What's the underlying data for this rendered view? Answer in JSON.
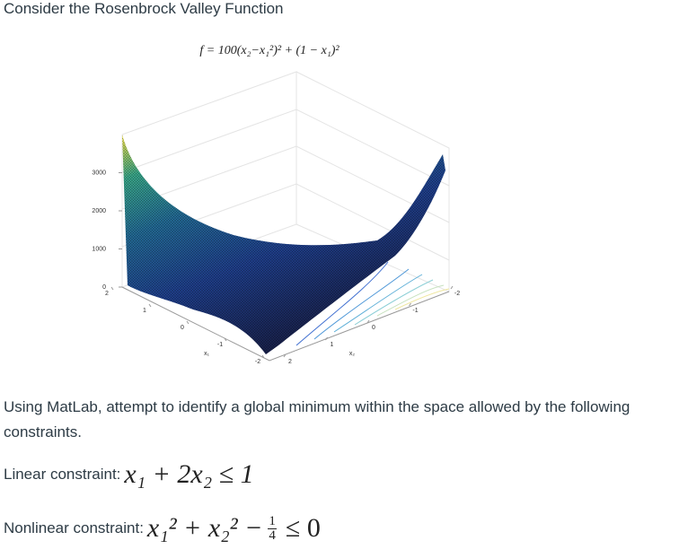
{
  "header": {
    "title": "Consider the Rosenbrock Valley Function"
  },
  "figure": {
    "formula": "f = 100(x₂−x₁²)² + (1 − x₁)²",
    "zticks": [
      0,
      1000,
      2000,
      3000
    ],
    "x1ticks": [
      2,
      1,
      0,
      -1,
      -2
    ],
    "x2ticks": [
      2,
      1,
      0,
      -1,
      -2
    ],
    "x1label": "x₁",
    "x2label": "x₂"
  },
  "body": {
    "paragraph": "Using MatLab, attempt to identify a global minimum within the space allowed by the following constraints.",
    "linear": {
      "label": "Linear constraint:",
      "expr": "x₁ + 2x₂ ≤ 1"
    },
    "nonlinear": {
      "label": "Nonlinear constraint:",
      "lhs": "x₁² + x₂² −",
      "num": "1",
      "den": "4",
      "rhs": "≤ 0"
    }
  }
}
